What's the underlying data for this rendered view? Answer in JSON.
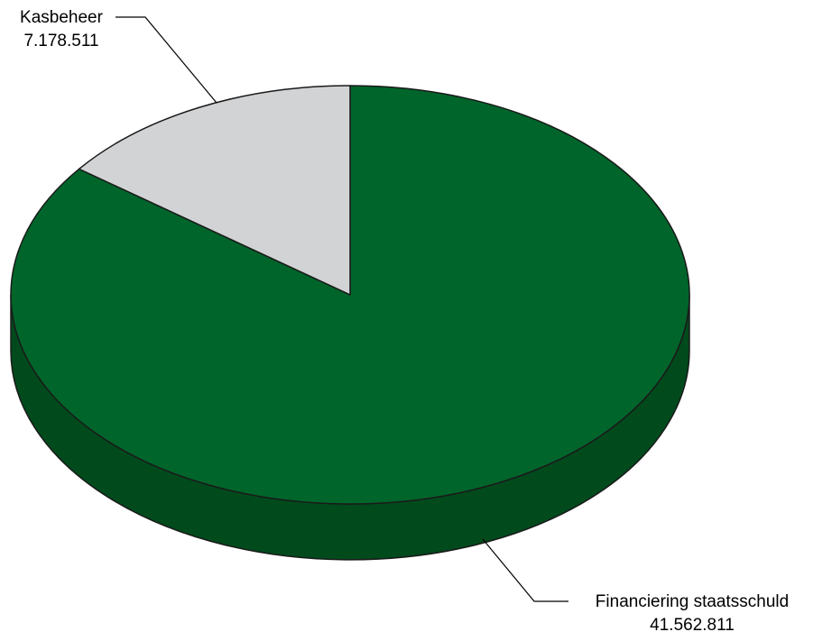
{
  "chart_data": {
    "type": "pie",
    "title": "",
    "slices": [
      {
        "label": "Financiering staatsschuld",
        "value_label": "41.562.811",
        "value": 41562811
      },
      {
        "label": "Kasbeheer",
        "value_label": "7.178.511",
        "value": 7178511
      }
    ],
    "colors": {
      "Financiering staatsschuld": "#00652a",
      "Kasbeheer": "#d2d3d5",
      "side_green": "#004a1c",
      "side_grey": "#a8a9ab",
      "outline": "#1a1a1a"
    },
    "legend": "none",
    "three_d": true
  }
}
